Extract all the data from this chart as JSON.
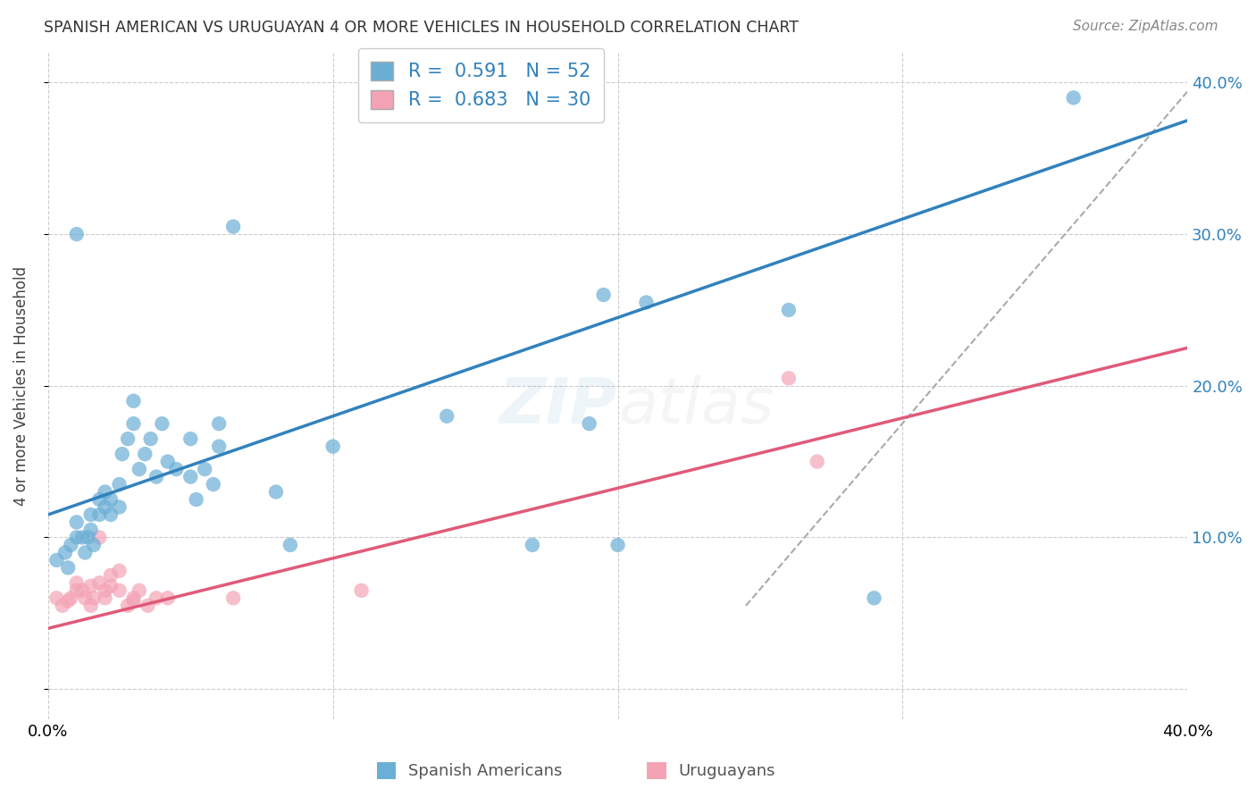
{
  "title": "SPANISH AMERICAN VS URUGUAYAN 4 OR MORE VEHICLES IN HOUSEHOLD CORRELATION CHART",
  "source": "Source: ZipAtlas.com",
  "ylabel": "4 or more Vehicles in Household",
  "legend_label1": "Spanish Americans",
  "legend_label2": "Uruguayans",
  "r1": 0.591,
  "n1": 52,
  "r2": 0.683,
  "n2": 30,
  "xlim": [
    0.0,
    0.4
  ],
  "ylim": [
    -0.02,
    0.42
  ],
  "blue_line": [
    [
      0.0,
      0.115
    ],
    [
      0.4,
      0.375
    ]
  ],
  "pink_line": [
    [
      0.0,
      0.04
    ],
    [
      0.4,
      0.225
    ]
  ],
  "dashed_line": [
    [
      0.245,
      0.055
    ],
    [
      0.405,
      0.405
    ]
  ],
  "blue_color": "#6baed6",
  "pink_color": "#f4a3b5",
  "blue_line_color": "#3182bd",
  "pink_line_color": "#e05a7a",
  "dashed_line_color": "#aaaaaa",
  "blue_scatter": [
    [
      0.003,
      0.085
    ],
    [
      0.006,
      0.09
    ],
    [
      0.007,
      0.08
    ],
    [
      0.008,
      0.095
    ],
    [
      0.01,
      0.1
    ],
    [
      0.01,
      0.11
    ],
    [
      0.012,
      0.1
    ],
    [
      0.013,
      0.09
    ],
    [
      0.014,
      0.1
    ],
    [
      0.015,
      0.115
    ],
    [
      0.015,
      0.105
    ],
    [
      0.016,
      0.095
    ],
    [
      0.018,
      0.115
    ],
    [
      0.018,
      0.125
    ],
    [
      0.02,
      0.13
    ],
    [
      0.02,
      0.12
    ],
    [
      0.022,
      0.125
    ],
    [
      0.022,
      0.115
    ],
    [
      0.025,
      0.12
    ],
    [
      0.025,
      0.135
    ],
    [
      0.026,
      0.155
    ],
    [
      0.028,
      0.165
    ],
    [
      0.03,
      0.175
    ],
    [
      0.03,
      0.19
    ],
    [
      0.032,
      0.145
    ],
    [
      0.034,
      0.155
    ],
    [
      0.036,
      0.165
    ],
    [
      0.038,
      0.14
    ],
    [
      0.04,
      0.175
    ],
    [
      0.042,
      0.15
    ],
    [
      0.045,
      0.145
    ],
    [
      0.05,
      0.165
    ],
    [
      0.05,
      0.14
    ],
    [
      0.052,
      0.125
    ],
    [
      0.055,
      0.145
    ],
    [
      0.058,
      0.135
    ],
    [
      0.06,
      0.16
    ],
    [
      0.06,
      0.175
    ],
    [
      0.065,
      0.305
    ],
    [
      0.01,
      0.3
    ],
    [
      0.1,
      0.16
    ],
    [
      0.14,
      0.18
    ],
    [
      0.17,
      0.095
    ],
    [
      0.19,
      0.175
    ],
    [
      0.2,
      0.095
    ],
    [
      0.21,
      0.255
    ],
    [
      0.29,
      0.06
    ],
    [
      0.36,
      0.39
    ],
    [
      0.08,
      0.13
    ],
    [
      0.085,
      0.095
    ],
    [
      0.195,
      0.26
    ],
    [
      0.26,
      0.25
    ]
  ],
  "pink_scatter": [
    [
      0.003,
      0.06
    ],
    [
      0.005,
      0.055
    ],
    [
      0.007,
      0.058
    ],
    [
      0.008,
      0.06
    ],
    [
      0.01,
      0.065
    ],
    [
      0.01,
      0.07
    ],
    [
      0.012,
      0.065
    ],
    [
      0.013,
      0.06
    ],
    [
      0.015,
      0.068
    ],
    [
      0.015,
      0.055
    ],
    [
      0.016,
      0.06
    ],
    [
      0.018,
      0.07
    ],
    [
      0.018,
      0.1
    ],
    [
      0.02,
      0.065
    ],
    [
      0.02,
      0.06
    ],
    [
      0.022,
      0.068
    ],
    [
      0.022,
      0.075
    ],
    [
      0.025,
      0.078
    ],
    [
      0.025,
      0.065
    ],
    [
      0.028,
      0.055
    ],
    [
      0.03,
      0.06
    ],
    [
      0.03,
      0.058
    ],
    [
      0.032,
      0.065
    ],
    [
      0.035,
      0.055
    ],
    [
      0.038,
      0.06
    ],
    [
      0.042,
      0.06
    ],
    [
      0.065,
      0.06
    ],
    [
      0.11,
      0.065
    ],
    [
      0.26,
      0.205
    ],
    [
      0.27,
      0.15
    ]
  ],
  "background_color": "#ffffff",
  "grid_color": "#cccccc"
}
